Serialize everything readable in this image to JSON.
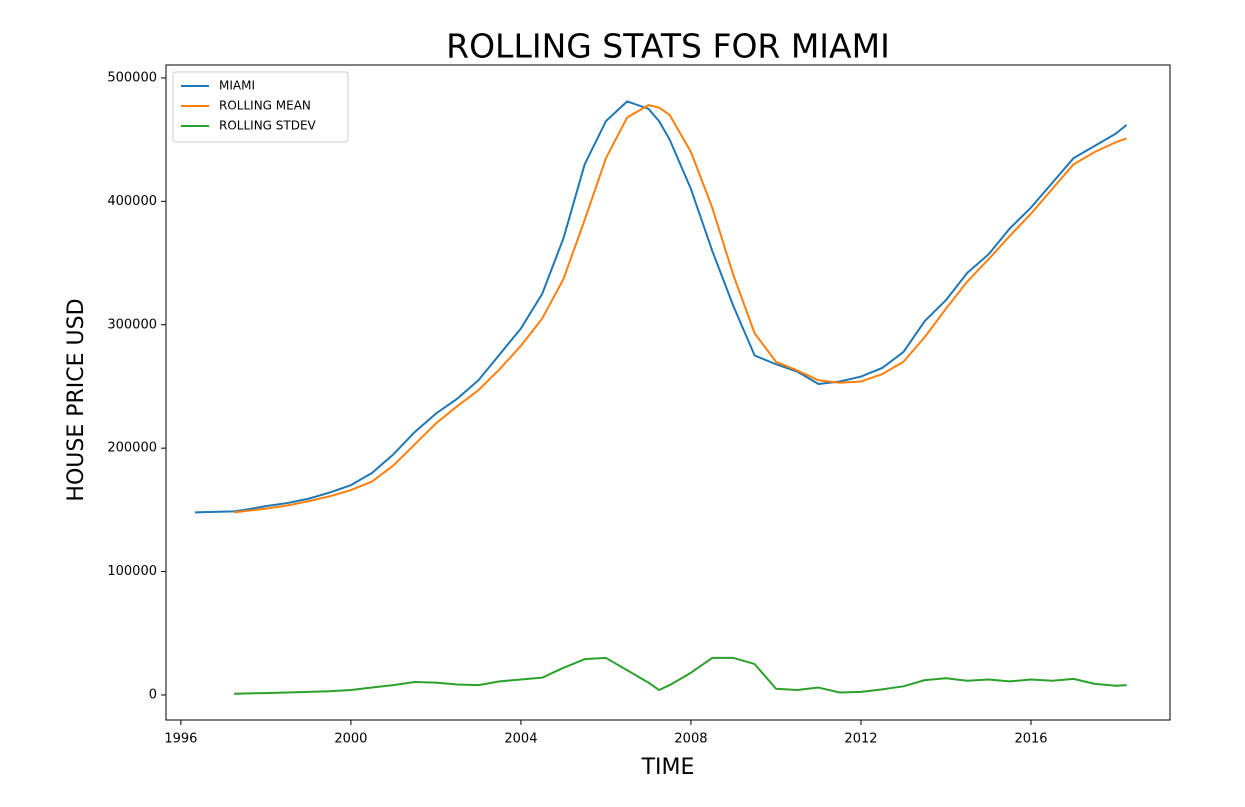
{
  "chart_data": {
    "type": "line",
    "title": "ROLLING STATS FOR MIAMI",
    "x_label": "TIME",
    "y_label": "HOUSE PRICE USD",
    "x": [
      1996.33,
      1997.25,
      1997.5,
      1998,
      1998.5,
      1999,
      1999.5,
      2000,
      2000.5,
      2001,
      2001.5,
      2002,
      2002.5,
      2003,
      2003.5,
      2004,
      2004.5,
      2005,
      2005.5,
      2006,
      2006.5,
      2007,
      2007.25,
      2007.5,
      2008,
      2008.5,
      2009,
      2009.5,
      2010,
      2010.5,
      2011,
      2011.5,
      2012,
      2012.5,
      2013,
      2013.5,
      2014,
      2014.5,
      2015,
      2015.5,
      2016,
      2016.5,
      2017,
      2017.5,
      2018,
      2018.25
    ],
    "series": [
      {
        "name": "MIAMI",
        "color": "#1f77b4",
        "values": [
          148000,
          148800,
          150000,
          153000,
          155500,
          159000,
          164000,
          170000,
          180000,
          195000,
          213000,
          228000,
          240000,
          255000,
          276000,
          297000,
          325000,
          370000,
          430000,
          465000,
          481000,
          475000,
          465000,
          450000,
          410000,
          360000,
          315000,
          275000,
          268000,
          262000,
          252000,
          254000,
          258000,
          265000,
          278000,
          303000,
          320000,
          342000,
          357000,
          378000,
          395000,
          415000,
          435000,
          445000,
          455000,
          462000
        ]
      },
      {
        "name": "ROLLING MEAN",
        "color": "#ff7f0e",
        "values": [
          null,
          148000,
          149000,
          151000,
          153500,
          157000,
          161000,
          166000,
          173000,
          186000,
          203000,
          220000,
          234000,
          247000,
          264000,
          283000,
          305000,
          337000,
          385000,
          435000,
          468000,
          478000,
          476000,
          470000,
          440000,
          395000,
          340000,
          293000,
          270000,
          263000,
          255000,
          253000,
          254000,
          260000,
          270000,
          290000,
          313000,
          335000,
          353000,
          372000,
          390000,
          410000,
          430000,
          440000,
          448000,
          451000
        ]
      },
      {
        "name": "ROLLING STDEV",
        "color": "#2ca02c",
        "values": [
          null,
          1000,
          1200,
          1500,
          2000,
          2500,
          3000,
          4000,
          6000,
          8000,
          10500,
          10000,
          8500,
          8000,
          11000,
          12500,
          14000,
          22000,
          29000,
          30000,
          20000,
          10000,
          4000,
          8000,
          18000,
          30000,
          30000,
          25000,
          5000,
          4000,
          6000,
          2000,
          2500,
          4500,
          7000,
          12000,
          13500,
          11500,
          12500,
          11000,
          12500,
          11500,
          13000,
          9000,
          7500,
          8000
        ]
      }
    ],
    "xlim": [
      1995.65,
      2019.27
    ],
    "xticks": [
      1996,
      2000,
      2004,
      2008,
      2012,
      2016
    ],
    "ylim": [
      -20300,
      510500
    ],
    "yticks": [
      0,
      100000,
      200000,
      300000,
      400000,
      500000
    ],
    "grid": false,
    "legend": "upper left"
  }
}
